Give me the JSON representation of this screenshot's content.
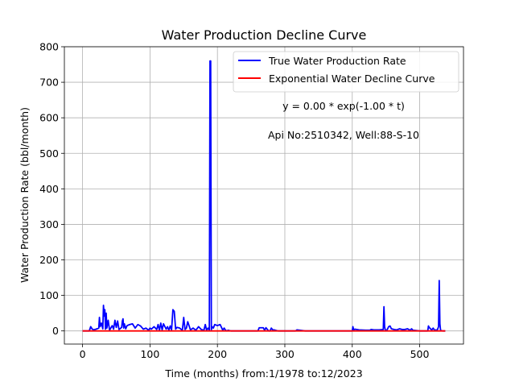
{
  "chart_data": {
    "type": "line",
    "title": "Water Production Decline Curve",
    "xlabel": "Time (months) from:1/1978 to:12/2023",
    "ylabel": "Water Production Rate (bbl/month)",
    "xlim": [
      -27,
      565
    ],
    "ylim": [
      -37,
      800
    ],
    "xticks": [
      0,
      100,
      200,
      300,
      400,
      500
    ],
    "yticks": [
      0,
      100,
      200,
      300,
      400,
      500,
      600,
      700,
      800
    ],
    "grid": true,
    "legend_position": "top-right",
    "annotations": [
      "y = 0.00 * exp(-1.00 * t)",
      "Api No:2510342, Well:88-S-10"
    ],
    "series": [
      {
        "name": "True Water Production Rate",
        "color": "#0000ff",
        "x": [
          0,
          10,
          12,
          14,
          16,
          20,
          24,
          25,
          26,
          28,
          30,
          31,
          32,
          33,
          34,
          35,
          36,
          38,
          40,
          44,
          46,
          48,
          50,
          52,
          54,
          58,
          59,
          60,
          61,
          62,
          64,
          66,
          70,
          74,
          78,
          82,
          86,
          90,
          94,
          98,
          100,
          102,
          106,
          110,
          112,
          114,
          116,
          118,
          120,
          124,
          126,
          128,
          130,
          132,
          134,
          136,
          138,
          140,
          144,
          148,
          150,
          152,
          154,
          156,
          160,
          164,
          168,
          172,
          176,
          180,
          182,
          184,
          186,
          188,
          189,
          190,
          191,
          192,
          194,
          196,
          200,
          204,
          208,
          210,
          212,
          214,
          216,
          220,
          230,
          240,
          250,
          260,
          262,
          264,
          268,
          270,
          272,
          276,
          278,
          280,
          282,
          284,
          290,
          300,
          316,
          318,
          330,
          340,
          400,
          401,
          402,
          404,
          410,
          420,
          426,
          428,
          432,
          440,
          446,
          447,
          448,
          449,
          450,
          452,
          454,
          456,
          458,
          462,
          466,
          470,
          474,
          478,
          482,
          486,
          488,
          490,
          500,
          512,
          513,
          514,
          516,
          518,
          520,
          522,
          524,
          526,
          528,
          529,
          530,
          531,
          532,
          534,
          538
        ],
        "y": [
          0,
          0,
          12,
          6,
          3,
          5,
          8,
          38,
          12,
          22,
          6,
          72,
          42,
          60,
          5,
          50,
          8,
          30,
          2,
          15,
          5,
          30,
          10,
          28,
          4,
          10,
          28,
          34,
          8,
          20,
          6,
          15,
          18,
          20,
          8,
          18,
          14,
          5,
          8,
          2,
          8,
          5,
          12,
          4,
          18,
          2,
          22,
          3,
          20,
          5,
          12,
          2,
          14,
          3,
          60,
          55,
          5,
          10,
          8,
          2,
          38,
          4,
          8,
          26,
          3,
          8,
          2,
          12,
          4,
          2,
          18,
          2,
          8,
          2,
          760,
          760,
          3,
          12,
          8,
          18,
          15,
          18,
          2,
          8,
          2,
          0,
          2,
          0,
          0,
          0,
          0,
          0,
          9,
          9,
          9,
          2,
          9,
          0,
          0,
          8,
          3,
          3,
          0,
          0,
          0,
          3,
          0,
          0,
          0,
          12,
          3,
          5,
          3,
          2,
          2,
          4,
          3,
          3,
          4,
          68,
          12,
          3,
          0,
          4,
          12,
          14,
          6,
          4,
          3,
          6,
          4,
          4,
          6,
          2,
          6,
          2,
          0,
          0,
          14,
          10,
          6,
          3,
          8,
          2,
          3,
          2,
          12,
          142,
          20,
          2,
          1,
          0,
          0
        ]
      },
      {
        "name": "Exponential Water Decline Curve",
        "color": "#ff0000",
        "x": [
          0,
          538
        ],
        "y": [
          0,
          0
        ]
      }
    ]
  }
}
